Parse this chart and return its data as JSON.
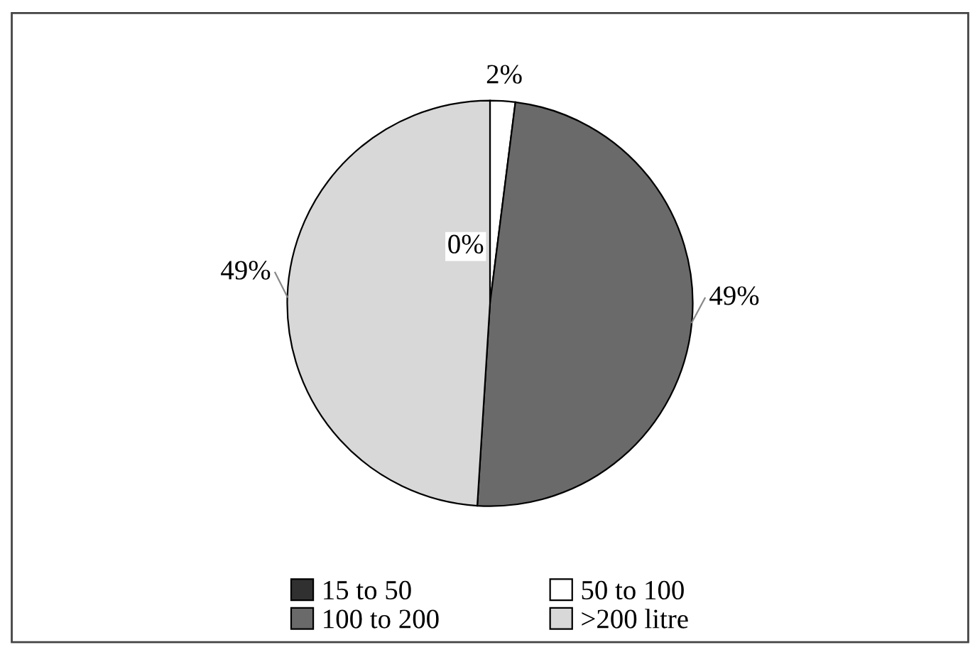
{
  "chart_data": {
    "type": "pie",
    "categories": [
      "15 to 50",
      "50 to 100",
      "100 to 200",
      ">200 litre"
    ],
    "values": [
      0,
      2,
      49,
      49
    ],
    "colors": [
      "#303030",
      "#ffffff",
      "#6a6a6a",
      "#d8d8d8"
    ],
    "value_labels": [
      "0%",
      "2%",
      "49%",
      "49%"
    ],
    "legend": "bottom"
  }
}
